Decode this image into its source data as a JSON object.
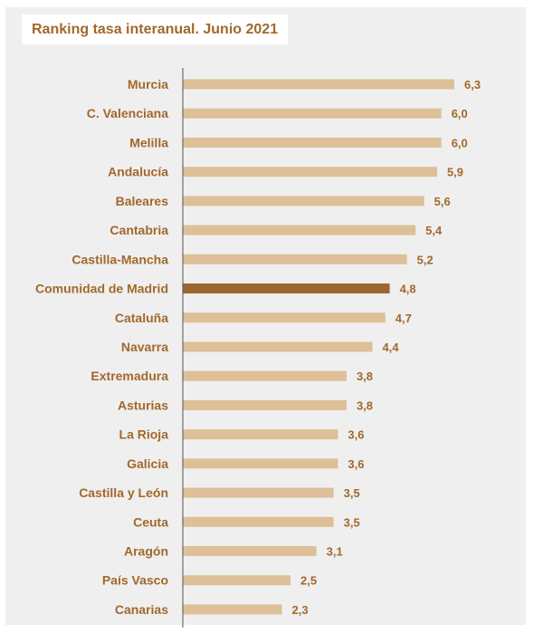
{
  "chart_data": {
    "type": "bar",
    "orientation": "horizontal",
    "title": "Ranking tasa interanual. Junio 2021",
    "categories": [
      "Murcia",
      "C. Valenciana",
      "Melilla",
      "Andalucía",
      "Baleares",
      "Cantabria",
      "Castilla-Mancha",
      "Comunidad de Madrid",
      "Cataluña",
      "Navarra",
      "Extremadura",
      "Asturias",
      "La Rioja",
      "Galicia",
      "Castilla y León",
      "Ceuta",
      "Aragón",
      "País Vasco",
      "Canarias"
    ],
    "values": [
      6.3,
      6.0,
      6.0,
      5.9,
      5.6,
      5.4,
      5.2,
      4.8,
      4.7,
      4.4,
      3.8,
      3.8,
      3.6,
      3.6,
      3.5,
      3.5,
      3.1,
      2.5,
      2.3
    ],
    "value_labels": [
      "6,3",
      "6,0",
      "6,0",
      "5,9",
      "5,6",
      "5,4",
      "5,2",
      "4,8",
      "4,7",
      "4,4",
      "3,8",
      "3,8",
      "3,6",
      "3,6",
      "3,5",
      "3,5",
      "3,1",
      "2,5",
      "2,3"
    ],
    "highlight": "Comunidad de Madrid",
    "xlim": [
      0,
      6.3
    ],
    "grid": false,
    "legend": "none",
    "colors": {
      "bar": "#ddbf98",
      "highlight_bar": "#9b6730",
      "text": "#a2682a",
      "axis": "#555555",
      "background": "#efefef"
    }
  }
}
